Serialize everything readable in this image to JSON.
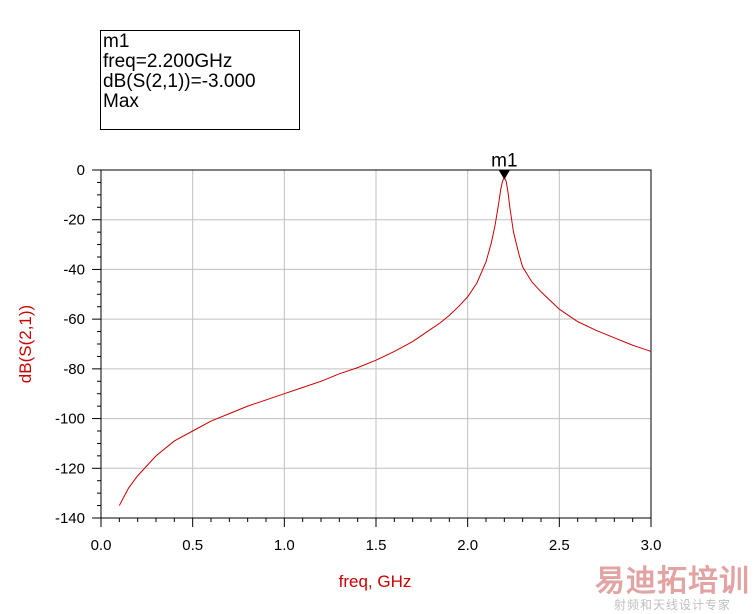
{
  "chart_data": {
    "type": "line",
    "xlabel": "freq, GHz",
    "ylabel": "dB(S(2,1))",
    "xlim": [
      0.0,
      3.0
    ],
    "ylim": [
      -140,
      0
    ],
    "xticks": [
      "0.0",
      "0.5",
      "1.0",
      "1.5",
      "2.0",
      "2.5",
      "3.0"
    ],
    "yticks": [
      "0",
      "-20",
      "-40",
      "-60",
      "-80",
      "-100",
      "-120",
      "-140"
    ],
    "grid": true,
    "series_color": "#cc0000",
    "series": [
      {
        "x": [
          0.1,
          0.15,
          0.2,
          0.3,
          0.4,
          0.5,
          0.6,
          0.7,
          0.8,
          0.9,
          1.0,
          1.1,
          1.2,
          1.3,
          1.4,
          1.5,
          1.6,
          1.7,
          1.8,
          1.85,
          1.9,
          1.95,
          2.0,
          2.05,
          2.1,
          2.13,
          2.15,
          2.17,
          2.18,
          2.19,
          2.2,
          2.21,
          2.22,
          2.23,
          2.25,
          2.28,
          2.3,
          2.35,
          2.4,
          2.5,
          2.6,
          2.7,
          2.8,
          2.9,
          3.0
        ],
        "y": [
          -135,
          -128,
          -123,
          -115,
          -109,
          -105,
          -101,
          -98,
          -95,
          -92.5,
          -90,
          -87.5,
          -85,
          -82,
          -79.5,
          -76.5,
          -73,
          -69,
          -64,
          -61.5,
          -58.5,
          -55,
          -51,
          -45.5,
          -37,
          -29,
          -22,
          -13,
          -8,
          -4.5,
          -3,
          -4.5,
          -9,
          -15,
          -25,
          -34,
          -39,
          -45,
          -49,
          -56,
          -61,
          -64.5,
          -67.5,
          -70.5,
          -73
        ]
      }
    ],
    "marker": {
      "name": "m1",
      "x": 2.2,
      "y": -3.0,
      "readout": [
        "m1",
        "freq=2.200GHz",
        "dB(S(2,1))=-3.000",
        "Max"
      ]
    }
  },
  "watermark": {
    "main": "易迪拓培训",
    "sub": "射频和天线设计专家"
  }
}
